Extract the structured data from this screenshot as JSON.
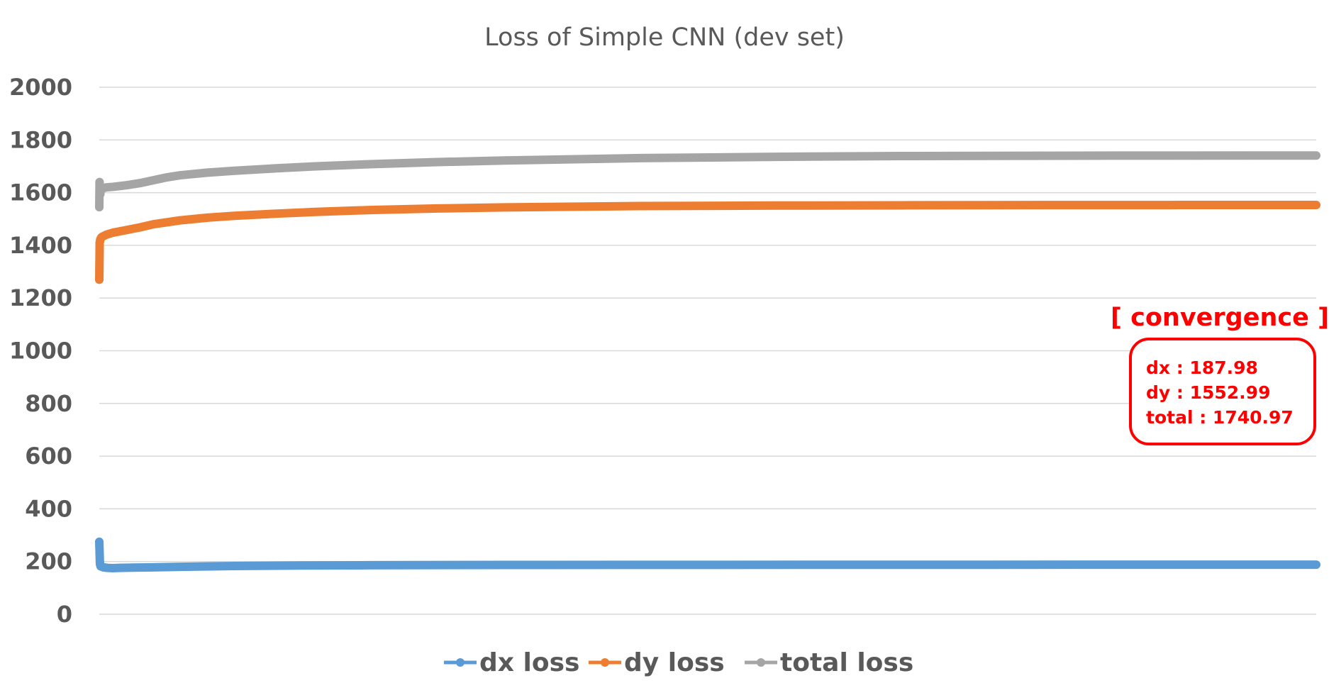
{
  "chart_data": {
    "type": "line",
    "title": "Loss of Simple CNN (dev set)",
    "xlabel": "",
    "ylabel": "",
    "ylim": [
      0,
      2000
    ],
    "yticks": [
      "0",
      "200",
      "400",
      "600",
      "800",
      "1000",
      "1200",
      "1400",
      "1600",
      "1800",
      "2000"
    ],
    "grid": true,
    "legend": "bottom",
    "x_tick_labels_shown": false,
    "series": [
      {
        "name": "dx loss",
        "color": "#5b9bd5",
        "markers": [
          [
            0,
            275
          ],
          [
            0.2,
            230
          ],
          [
            0.5,
            195
          ],
          [
            0.8,
            185
          ],
          [
            1,
            182
          ]
        ],
        "values": [
          [
            0,
            275
          ],
          [
            0.5,
            190
          ],
          [
            1,
            182
          ],
          [
            3,
            178
          ],
          [
            6,
            176
          ],
          [
            10,
            175
          ],
          [
            15,
            176
          ],
          [
            25,
            177
          ],
          [
            40,
            178
          ],
          [
            60,
            180
          ],
          [
            100,
            183
          ],
          [
            150,
            185
          ],
          [
            200,
            186
          ],
          [
            300,
            187
          ],
          [
            450,
            187.5
          ],
          [
            600,
            187.9
          ],
          [
            750,
            187.98
          ],
          [
            900,
            187.98
          ]
        ]
      },
      {
        "name": "dy loss",
        "color": "#ed7d31",
        "markers": [
          [
            0,
            1270
          ],
          [
            0.3,
            1410
          ],
          [
            0.6,
            1420
          ],
          [
            1,
            1425
          ],
          [
            1.5,
            1430
          ]
        ],
        "values": [
          [
            0,
            1270
          ],
          [
            0.3,
            1410
          ],
          [
            1,
            1425
          ],
          [
            2,
            1432
          ],
          [
            5,
            1440
          ],
          [
            10,
            1448
          ],
          [
            20,
            1458
          ],
          [
            30,
            1468
          ],
          [
            40,
            1480
          ],
          [
            60,
            1495
          ],
          [
            80,
            1505
          ],
          [
            100,
            1512
          ],
          [
            130,
            1520
          ],
          [
            160,
            1527
          ],
          [
            200,
            1534
          ],
          [
            250,
            1540
          ],
          [
            300,
            1544
          ],
          [
            400,
            1549
          ],
          [
            500,
            1551
          ],
          [
            600,
            1552
          ],
          [
            700,
            1552.7
          ],
          [
            800,
            1552.99
          ],
          [
            900,
            1552.99
          ]
        ]
      },
      {
        "name": "total loss",
        "color": "#a5a5a5",
        "markers": [
          [
            0,
            1545
          ],
          [
            0.2,
            1640
          ],
          [
            0.5,
            1600
          ],
          [
            0.8,
            1595
          ],
          [
            1.2,
            1610
          ]
        ],
        "values": [
          [
            0,
            1545
          ],
          [
            0.2,
            1640
          ],
          [
            0.6,
            1600
          ],
          [
            1.2,
            1610
          ],
          [
            2,
            1615
          ],
          [
            5,
            1620
          ],
          [
            10,
            1622
          ],
          [
            20,
            1628
          ],
          [
            30,
            1636
          ],
          [
            40,
            1647
          ],
          [
            50,
            1658
          ],
          [
            60,
            1666
          ],
          [
            80,
            1676
          ],
          [
            100,
            1683
          ],
          [
            130,
            1692
          ],
          [
            160,
            1700
          ],
          [
            200,
            1708
          ],
          [
            250,
            1716
          ],
          [
            300,
            1722
          ],
          [
            400,
            1731
          ],
          [
            500,
            1736
          ],
          [
            600,
            1739
          ],
          [
            750,
            1740.5
          ],
          [
            900,
            1740.97
          ]
        ]
      }
    ],
    "annotation": {
      "heading": "[ convergence ]",
      "lines": [
        "dx : 187.98",
        "dy : 1552.99",
        "total : 1740.97"
      ],
      "color": "#ff0000"
    }
  }
}
